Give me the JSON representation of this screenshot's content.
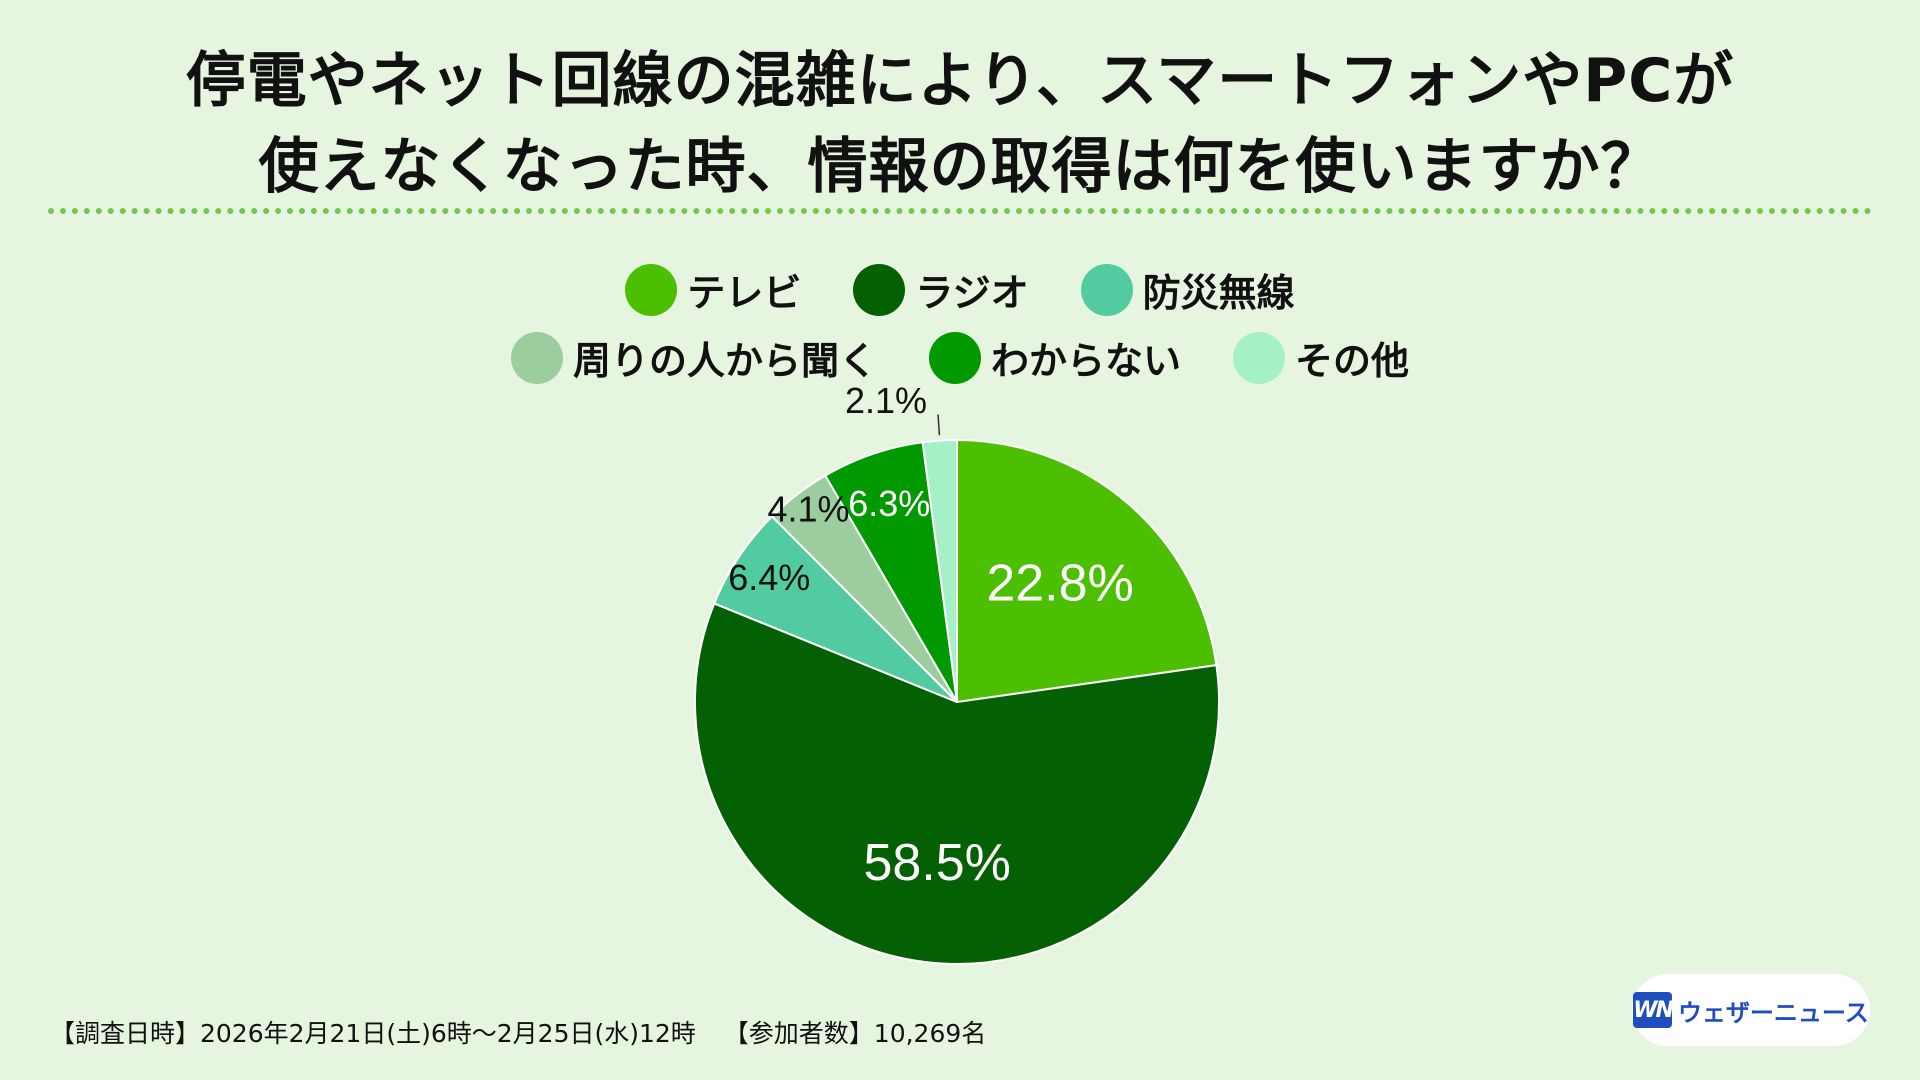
{
  "title": {
    "line1": "停電やネット回線の混雑により、スマートフォンやPCが",
    "line2": "使えなくなった時、情報の取得は何を使いますか？"
  },
  "legend": [
    {
      "label": "テレビ",
      "color": "#4cbf00"
    },
    {
      "label": "ラジオ",
      "color": "#036003"
    },
    {
      "label": "防災無線",
      "color": "#52cba0"
    },
    {
      "label": "周りの人から聞く",
      "color": "#9ccd9e"
    },
    {
      "label": "わからない",
      "color": "#009a00"
    },
    {
      "label": "その他",
      "color": "#a6f0c8"
    }
  ],
  "chart_data": {
    "type": "pie",
    "slices": [
      {
        "label": "テレビ",
        "value": 22.8,
        "display": "22.8%",
        "color": "#4cbf00",
        "label_color": "#ffffff"
      },
      {
        "label": "ラジオ",
        "value": 58.5,
        "display": "58.5%",
        "color": "#036003",
        "label_color": "#ffffff"
      },
      {
        "label": "防災無線",
        "value": 6.4,
        "display": "6.4%",
        "color": "#52cba0",
        "label_color": "#111111"
      },
      {
        "label": "周りの人から聞く",
        "value": 4.1,
        "display": "4.1%",
        "color": "#9ccd9e",
        "label_color": "#111111"
      },
      {
        "label": "わからない",
        "value": 6.3,
        "display": "6.3%",
        "color": "#009a00",
        "label_color": "#ffffff"
      },
      {
        "label": "その他",
        "value": 2.1,
        "display": "2.1%",
        "color": "#a6f0c8",
        "label_color": "#111111"
      }
    ],
    "start_angle": "12 o'clock",
    "direction": "clockwise"
  },
  "footer": {
    "survey_date": "【調査日時】2026年2月21日(土)6時〜2月25日(水)12時",
    "participants": "【参加者数】10,269名"
  },
  "logo": {
    "mark": "WN",
    "text": "ウェザーニュース"
  }
}
